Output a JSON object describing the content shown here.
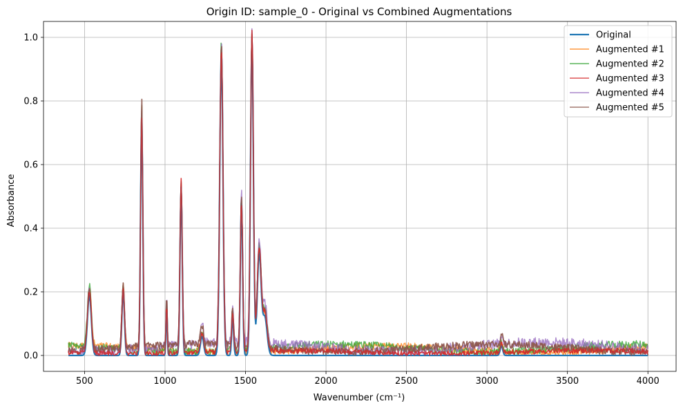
{
  "chart_data": {
    "type": "line",
    "title": "Origin ID: sample_0 - Original vs Combined Augmentations",
    "xlabel": "Wavenumber (cm⁻¹)",
    "ylabel": "Absorbance",
    "xlim": [
      245,
      4175
    ],
    "ylim": [
      -0.05,
      1.05
    ],
    "xticks": [
      500,
      1000,
      1500,
      2000,
      2500,
      3000,
      3500,
      4000
    ],
    "yticks": [
      0.0,
      0.2,
      0.4,
      0.6,
      0.8,
      1.0
    ],
    "xtick_labels": [
      "500",
      "1000",
      "1500",
      "2000",
      "2500",
      "3000",
      "3500",
      "4000"
    ],
    "ytick_labels": [
      "0.0",
      "0.2",
      "0.4",
      "0.6",
      "0.8",
      "1.0"
    ],
    "grid": true,
    "legend_position": "upper-right",
    "x_range": [
      400,
      4000
    ],
    "x_step": 4,
    "original": {
      "name": "Original",
      "color": "#1f77b4",
      "peaks": [
        {
          "center": 530,
          "height": 0.19,
          "width": 12
        },
        {
          "center": 740,
          "height": 0.2,
          "width": 8
        },
        {
          "center": 855,
          "height": 0.75,
          "width": 7
        },
        {
          "center": 1010,
          "height": 0.15,
          "width": 4
        },
        {
          "center": 1100,
          "height": 0.53,
          "width": 7
        },
        {
          "center": 1230,
          "height": 0.06,
          "width": 10
        },
        {
          "center": 1350,
          "height": 0.95,
          "width": 10
        },
        {
          "center": 1420,
          "height": 0.12,
          "width": 6
        },
        {
          "center": 1475,
          "height": 0.48,
          "width": 7
        },
        {
          "center": 1540,
          "height": 0.99,
          "width": 9
        },
        {
          "center": 1585,
          "height": 0.32,
          "width": 12
        },
        {
          "center": 1620,
          "height": 0.12,
          "width": 14
        },
        {
          "center": 3090,
          "height": 0.03,
          "width": 8
        }
      ]
    },
    "augmented": [
      {
        "name": "Augmented #1",
        "color": "#ff7f0e",
        "offset": 0.025,
        "noise": 0.012
      },
      {
        "name": "Augmented #2",
        "color": "#2ca02c",
        "offset": 0.03,
        "noise": 0.012
      },
      {
        "name": "Augmented #3",
        "color": "#d62728",
        "offset": 0.012,
        "noise": 0.008
      },
      {
        "name": "Augmented #4",
        "color": "#9467bd",
        "offset": 0.035,
        "noise": 0.016
      },
      {
        "name": "Augmented #5",
        "color": "#8c564b",
        "offset": 0.03,
        "noise": 0.012
      }
    ]
  }
}
